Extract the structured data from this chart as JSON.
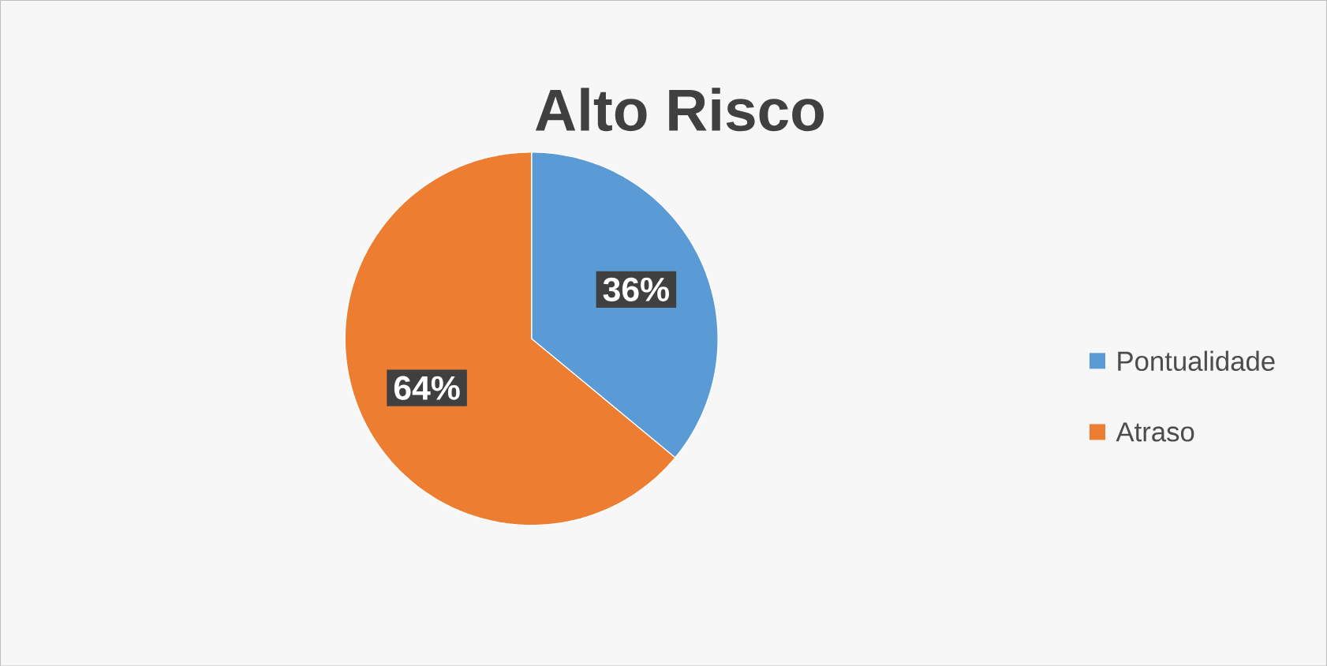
{
  "chart_data": {
    "type": "pie",
    "title": "Alto Risco",
    "categories": [
      "Pontualidade",
      "Atraso"
    ],
    "values": [
      36,
      64
    ],
    "colors": [
      "#5b9bd5",
      "#ed7d31"
    ],
    "value_labels": [
      "36%",
      "64%"
    ],
    "legend": "right"
  }
}
